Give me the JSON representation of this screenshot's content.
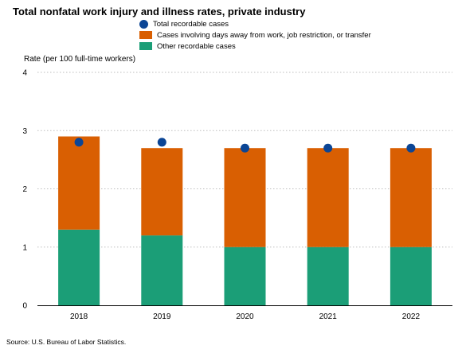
{
  "chart_data": {
    "type": "bar",
    "stacked": true,
    "title": "Total nonfatal work injury and illness rates, private industry",
    "ylabel": "Rate (per 100 full-time workers)",
    "xlabel": "",
    "categories": [
      "2018",
      "2019",
      "2020",
      "2021",
      "2022"
    ],
    "ylim": [
      0,
      4
    ],
    "yticks": [
      "0",
      "1",
      "2",
      "3",
      "4"
    ],
    "grid": true,
    "legend_position": "top",
    "series": [
      {
        "name": "Other recordable cases",
        "kind": "bar",
        "color": "#1b9e77",
        "values": [
          1.3,
          1.2,
          1.0,
          1.0,
          1.0
        ]
      },
      {
        "name": "Cases involving days away from work, job restriction, or transfer",
        "kind": "bar",
        "color": "#d95f02",
        "values": [
          1.6,
          1.5,
          1.7,
          1.7,
          1.7
        ]
      },
      {
        "name": "Total recordable cases",
        "kind": "point",
        "color": "#0b4595",
        "values": [
          2.8,
          2.8,
          2.7,
          2.7,
          2.7
        ]
      }
    ],
    "source": "Source: U.S. Bureau of Labor Statistics."
  }
}
